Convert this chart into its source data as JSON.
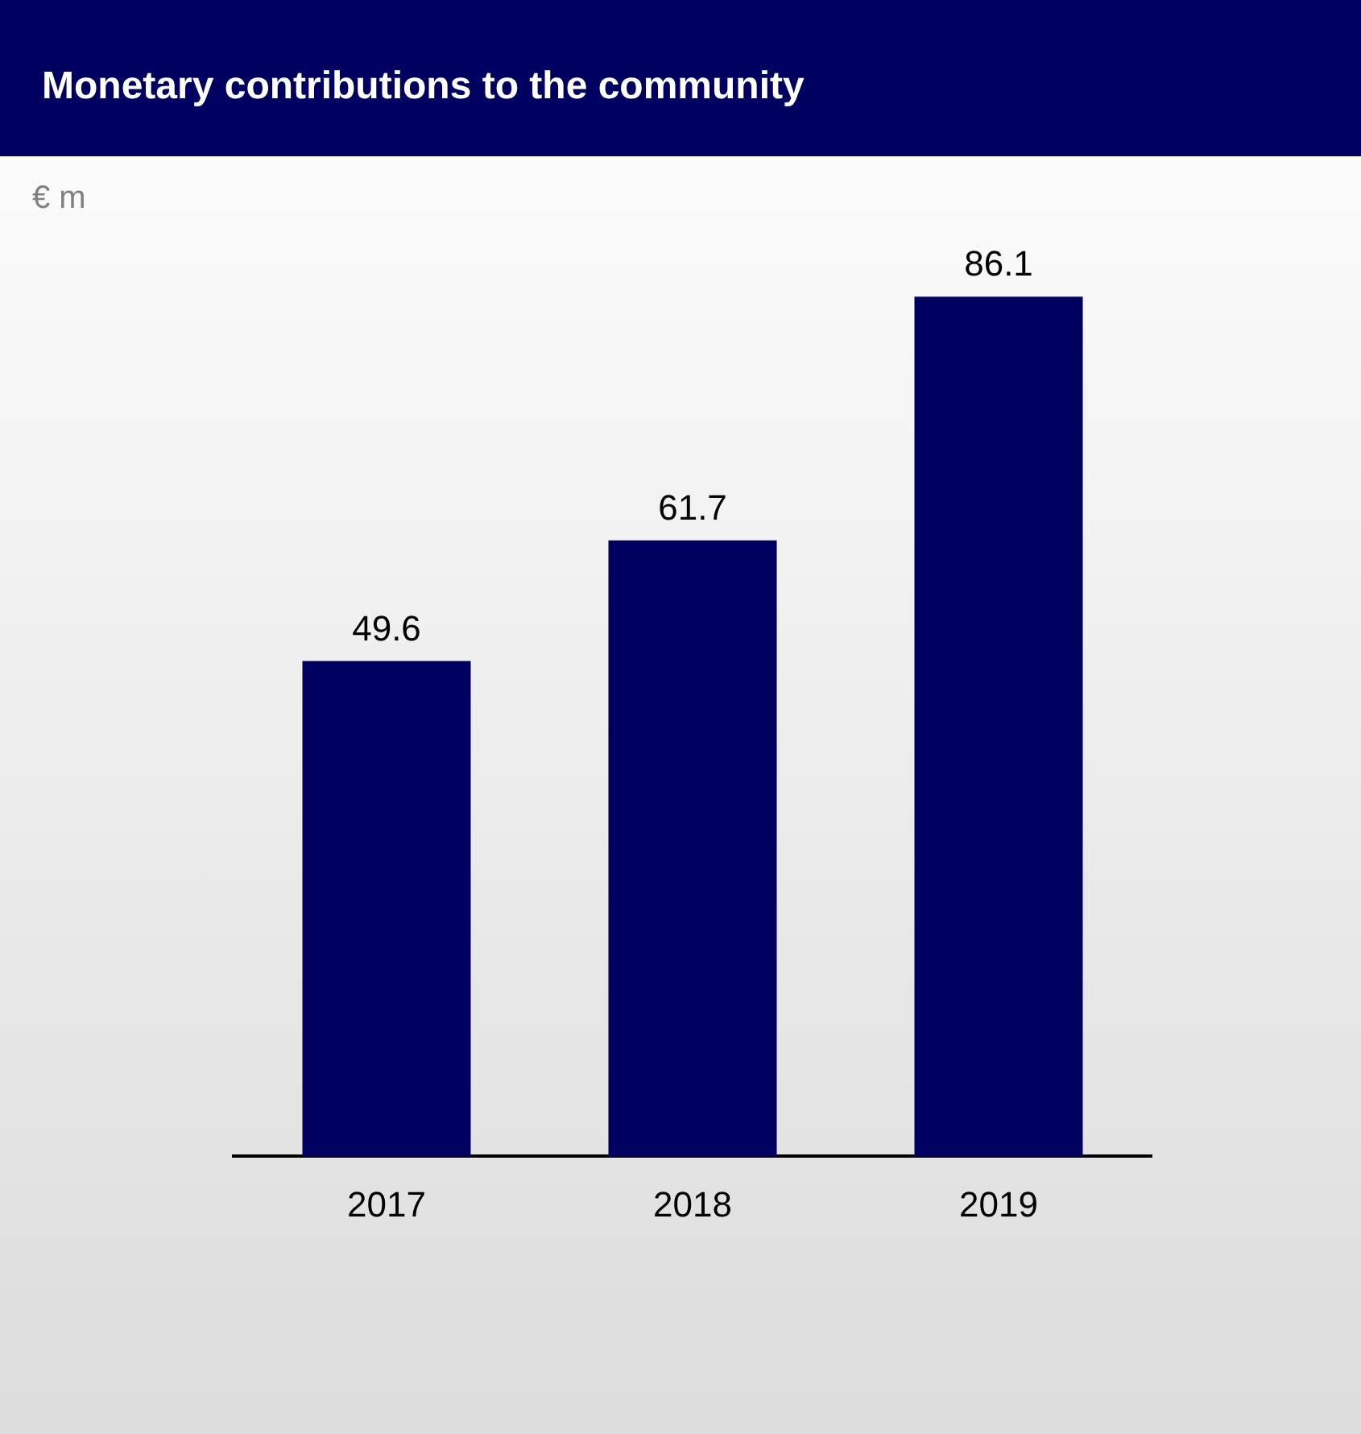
{
  "chart_data": {
    "type": "bar",
    "title": "Monetary contributions to the community",
    "annotations": [
      "€ m"
    ],
    "categories": [
      "2017",
      "2018",
      "2019"
    ],
    "values": [
      49.6,
      61.7,
      86.1
    ],
    "color": "#000060",
    "data_labels": true,
    "grid": false,
    "legend": false,
    "tick_labels": "x"
  }
}
